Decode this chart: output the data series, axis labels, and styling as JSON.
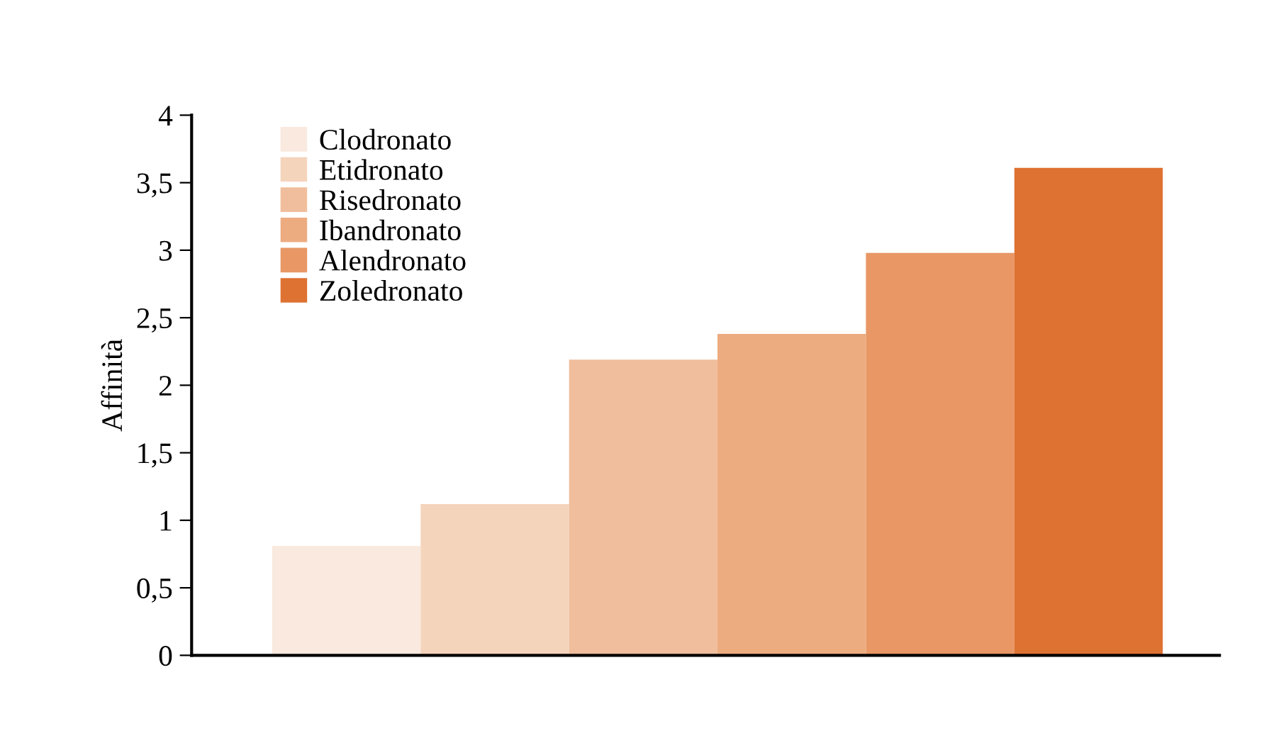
{
  "chart_data": {
    "type": "bar",
    "ylabel": "Affinità",
    "categories": [
      null
    ],
    "series": [
      {
        "name": "Clodronato",
        "color": "#f9e9de",
        "values": [
          0.81
        ]
      },
      {
        "name": "Etidronato",
        "color": "#f5d4bc",
        "values": [
          1.12
        ]
      },
      {
        "name": "Risedronato",
        "color": "#f0be9c",
        "values": [
          2.19
        ]
      },
      {
        "name": "Ibandronato",
        "color": "#ecac80",
        "values": [
          2.38
        ]
      },
      {
        "name": "Alendronato",
        "color": "#e89765",
        "values": [
          2.98
        ]
      },
      {
        "name": "Zoledronato",
        "color": "#de7232",
        "values": [
          3.61
        ]
      }
    ],
    "ylim": [
      0,
      4
    ],
    "yticks": [
      0,
      {
        "value": 0.5,
        "label": "0,5"
      },
      1,
      {
        "value": 1.5,
        "label": "1,5"
      },
      2,
      {
        "value": 2.5,
        "label": "2,5"
      },
      3,
      {
        "value": 3.5,
        "label": "3,5"
      },
      4
    ],
    "legend": "top left",
    "grid": false
  }
}
